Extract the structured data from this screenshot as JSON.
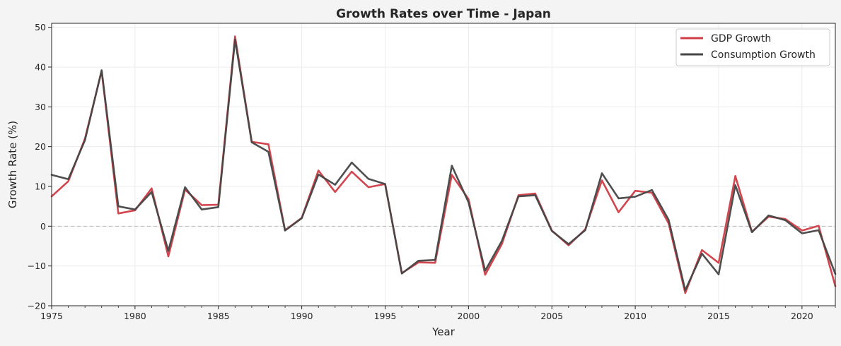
{
  "chart_data": {
    "type": "line",
    "title": "Growth Rates over Time - Japan",
    "xlabel": "Year",
    "ylabel": "Growth Rate (%)",
    "xlim": [
      1975,
      2022
    ],
    "ylim": [
      -20,
      51
    ],
    "xticks": [
      1975,
      1980,
      1985,
      1990,
      1995,
      2000,
      2005,
      2010,
      2015,
      2020
    ],
    "yticks": [
      -20,
      -10,
      0,
      10,
      20,
      30,
      40,
      50
    ],
    "grid": true,
    "zero_line": true,
    "legend_position": "top-right",
    "x": [
      1975,
      1976,
      1977,
      1978,
      1979,
      1980,
      1981,
      1982,
      1983,
      1984,
      1985,
      1986,
      1987,
      1988,
      1989,
      1990,
      1991,
      1992,
      1993,
      1994,
      1995,
      1996,
      1997,
      1998,
      1999,
      2000,
      2001,
      2002,
      2003,
      2004,
      2005,
      2006,
      2007,
      2008,
      2009,
      2010,
      2011,
      2012,
      2013,
      2014,
      2015,
      2016,
      2017,
      2018,
      2019,
      2020,
      2021,
      2022
    ],
    "series": [
      {
        "name": "GDP Growth",
        "color": "#d03c46",
        "values": [
          7.5,
          11.3,
          22.0,
          39.0,
          3.2,
          4.0,
          9.5,
          -7.6,
          9.2,
          5.3,
          5.4,
          47.7,
          21.2,
          20.6,
          -1.0,
          2.1,
          14.0,
          8.6,
          13.7,
          9.8,
          10.6,
          -11.8,
          -9.1,
          -9.2,
          12.9,
          6.8,
          -12.2,
          -4.5,
          7.8,
          8.2,
          -1.1,
          -4.8,
          -0.8,
          11.5,
          3.5,
          8.9,
          8.4,
          0.7,
          -16.8,
          -6.0,
          -9.2,
          12.6,
          -1.4,
          2.4,
          1.8,
          -1.1,
          0.1,
          -15.1
        ]
      },
      {
        "name": "Consumption Growth",
        "color": "#464646",
        "values": [
          12.9,
          11.8,
          21.6,
          39.2,
          5.0,
          4.2,
          8.6,
          -6.2,
          9.8,
          4.2,
          4.8,
          46.9,
          21.1,
          18.7,
          -1.1,
          2.0,
          13.0,
          10.4,
          16.0,
          11.9,
          10.6,
          -11.9,
          -8.7,
          -8.5,
          15.2,
          6.0,
          -11.2,
          -3.7,
          7.5,
          7.8,
          -1.2,
          -4.5,
          -1.0,
          13.3,
          7.0,
          7.4,
          9.1,
          1.6,
          -16.1,
          -6.9,
          -12.1,
          10.3,
          -1.5,
          2.7,
          1.5,
          -1.8,
          -1.0,
          -12.0
        ]
      }
    ]
  }
}
